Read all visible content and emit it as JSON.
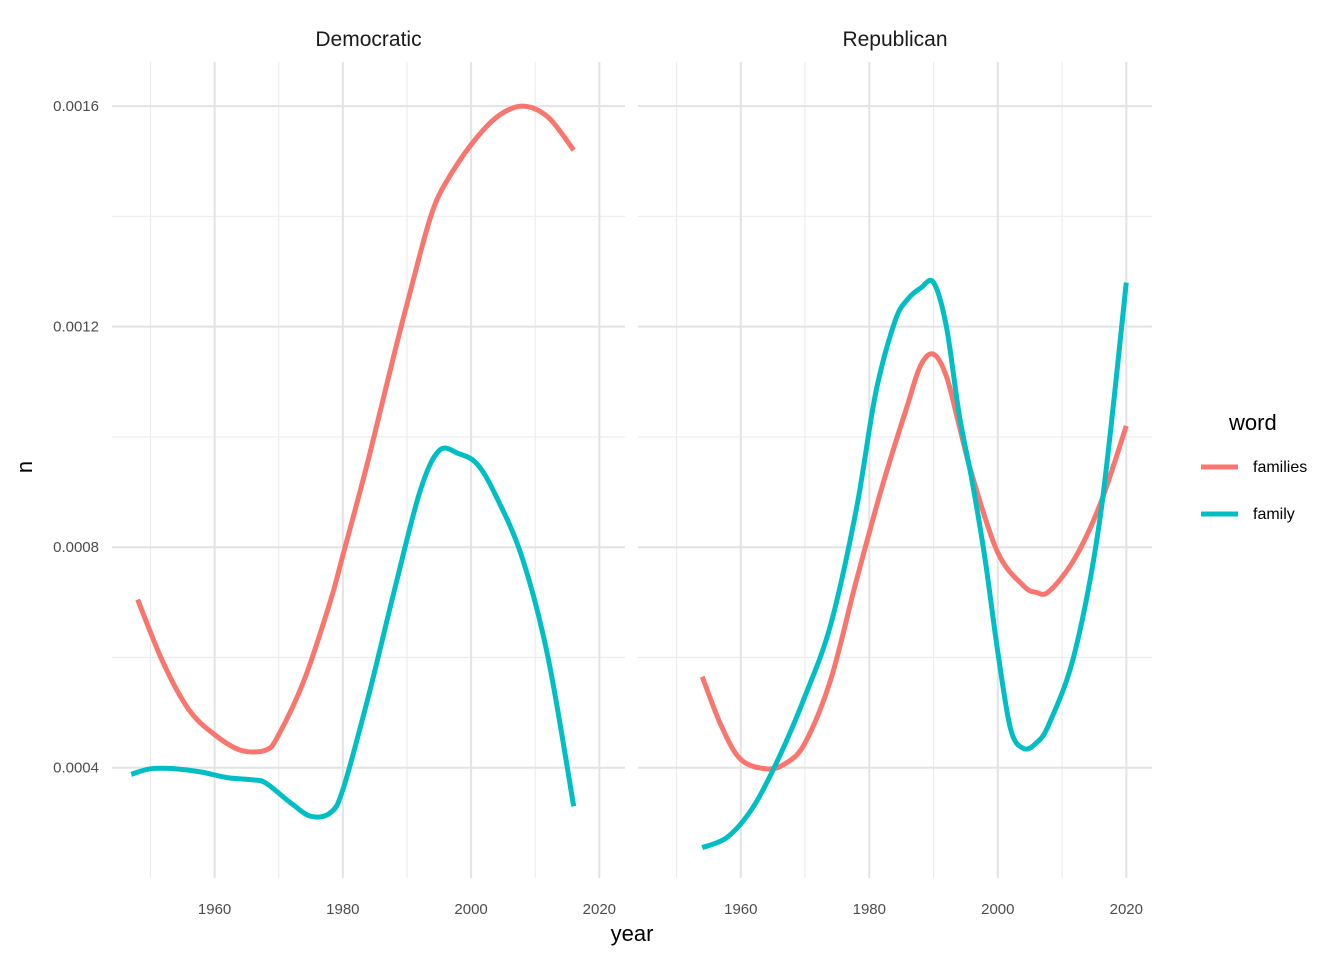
{
  "chart_data": {
    "type": "line",
    "xlabel": "year",
    "ylabel": "n",
    "x_ticks": [
      1960,
      1980,
      2000,
      2020
    ],
    "y_ticks": [
      0.0004,
      0.0008,
      0.0012,
      0.0016
    ],
    "y_tick_labels": [
      "0.0004",
      "0.0008",
      "0.0012",
      "0.0016"
    ],
    "grid": true,
    "legend": {
      "title": "word",
      "position": "right",
      "entries": [
        {
          "label": "families",
          "color": "#F8766D"
        },
        {
          "label": "family",
          "color": "#00BFC4"
        }
      ]
    },
    "panels": [
      {
        "title": "Democratic",
        "xlim": [
          1944,
          2024
        ],
        "ylim": [
          0.0002,
          0.00168
        ],
        "series": [
          {
            "name": "families",
            "color": "#F8766D",
            "points": [
              [
                1948,
                0.000705
              ],
              [
                1952,
                0.00059
              ],
              [
                1956,
                0.000505
              ],
              [
                1960,
                0.00046
              ],
              [
                1964,
                0.000432
              ],
              [
                1968,
                0.000432
              ],
              [
                1970,
                0.00046
              ],
              [
                1974,
                0.00056
              ],
              [
                1978,
                0.0007
              ],
              [
                1980,
                0.000785
              ],
              [
                1984,
                0.00096
              ],
              [
                1988,
                0.00115
              ],
              [
                1992,
                0.00133
              ],
              [
                1994,
                0.00141
              ],
              [
                1996,
                0.00146
              ],
              [
                2000,
                0.00153
              ],
              [
                2004,
                0.00158
              ],
              [
                2008,
                0.0016
              ],
              [
                2012,
                0.00158
              ],
              [
                2016,
                0.00152
              ]
            ]
          },
          {
            "name": "family",
            "color": "#00BFC4",
            "points": [
              [
                1947,
                0.000388
              ],
              [
                1950,
                0.000398
              ],
              [
                1954,
                0.000398
              ],
              [
                1958,
                0.000392
              ],
              [
                1962,
                0.000382
              ],
              [
                1966,
                0.000378
              ],
              [
                1968,
                0.000372
              ],
              [
                1972,
                0.000335
              ],
              [
                1975,
                0.000312
              ],
              [
                1978,
                0.000318
              ],
              [
                1980,
                0.00036
              ],
              [
                1984,
                0.00053
              ],
              [
                1988,
                0.00072
              ],
              [
                1992,
                0.0009
              ],
              [
                1995,
                0.000975
              ],
              [
                1998,
                0.00097
              ],
              [
                2001,
                0.00095
              ],
              [
                2004,
                0.00089
              ],
              [
                2008,
                0.00078
              ],
              [
                2012,
                0.0006
              ],
              [
                2016,
                0.00033
              ]
            ]
          }
        ]
      },
      {
        "title": "Republican",
        "xlim": [
          1944,
          2024
        ],
        "ylim": [
          0.0002,
          0.00168
        ],
        "series": [
          {
            "name": "families",
            "color": "#F8766D",
            "points": [
              [
                1954,
                0.000565
              ],
              [
                1957,
                0.000475
              ],
              [
                1960,
                0.000415
              ],
              [
                1964,
                0.000398
              ],
              [
                1967,
                0.000408
              ],
              [
                1970,
                0.000445
              ],
              [
                1974,
                0.00056
              ],
              [
                1978,
                0.00074
              ],
              [
                1982,
                0.00091
              ],
              [
                1986,
                0.00106
              ],
              [
                1988,
                0.00113
              ],
              [
                1990,
                0.00115
              ],
              [
                1992,
                0.00111
              ],
              [
                1994,
                0.00102
              ],
              [
                1996,
                0.00093
              ],
              [
                2000,
                0.00079
              ],
              [
                2004,
                0.00073
              ],
              [
                2006,
                0.000718
              ],
              [
                2008,
                0.00072
              ],
              [
                2012,
                0.00078
              ],
              [
                2016,
                0.00088
              ],
              [
                2020,
                0.00102
              ]
            ]
          },
          {
            "name": "family",
            "color": "#00BFC4",
            "points": [
              [
                1954,
                0.000255
              ],
              [
                1958,
                0.000275
              ],
              [
                1962,
                0.00033
              ],
              [
                1966,
                0.00042
              ],
              [
                1970,
                0.00053
              ],
              [
                1974,
                0.00066
              ],
              [
                1978,
                0.00087
              ],
              [
                1981,
                0.00108
              ],
              [
                1984,
                0.00121
              ],
              [
                1986,
                0.00125
              ],
              [
                1988,
                0.00127
              ],
              [
                1990,
                0.00128
              ],
              [
                1992,
                0.0012
              ],
              [
                1994,
                0.00104
              ],
              [
                1996,
                0.00092
              ],
              [
                1998,
                0.00078
              ],
              [
                2000,
                0.00061
              ],
              [
                2002,
                0.00047
              ],
              [
                2004,
                0.000435
              ],
              [
                2006,
                0.000445
              ],
              [
                2008,
                0.00048
              ],
              [
                2012,
                0.00061
              ],
              [
                2016,
                0.00086
              ],
              [
                2020,
                0.00128
              ]
            ]
          }
        ]
      }
    ]
  }
}
